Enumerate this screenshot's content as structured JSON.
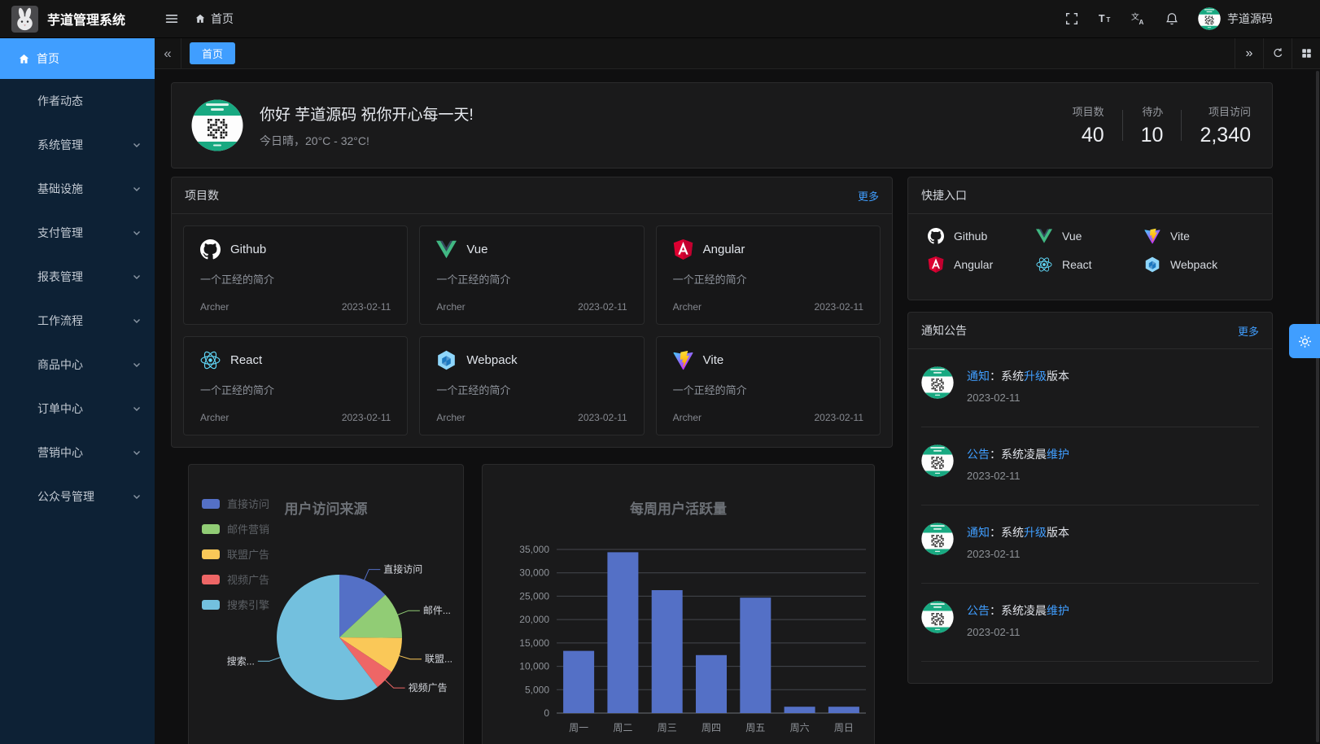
{
  "app": {
    "title": "芋道管理系统"
  },
  "topbar": {
    "breadcrumb_home": "首页",
    "user_name": "芋道源码",
    "actions": [
      "fullscreen-icon",
      "font-size-icon",
      "language-icon",
      "notification-icon"
    ]
  },
  "sidebar": {
    "items": [
      {
        "key": "home",
        "label": "首页",
        "icon": "home",
        "active": true,
        "chevron": false
      },
      {
        "key": "author-news",
        "label": "作者动态",
        "chevron": false
      },
      {
        "key": "system",
        "label": "系统管理",
        "chevron": true
      },
      {
        "key": "infra",
        "label": "基础设施",
        "chevron": true
      },
      {
        "key": "pay",
        "label": "支付管理",
        "chevron": true
      },
      {
        "key": "report",
        "label": "报表管理",
        "chevron": true
      },
      {
        "key": "workflow",
        "label": "工作流程",
        "chevron": true
      },
      {
        "key": "product",
        "label": "商品中心",
        "chevron": true
      },
      {
        "key": "order",
        "label": "订单中心",
        "chevron": true
      },
      {
        "key": "promotion",
        "label": "营销中心",
        "chevron": true
      },
      {
        "key": "mp",
        "label": "公众号管理",
        "chevron": true
      }
    ]
  },
  "tabbar": {
    "active_tab": "首页"
  },
  "greeting": {
    "title": "你好 芋道源码 祝你开心每一天!",
    "subtitle": "今日晴，20°C - 32°C!",
    "stats": [
      {
        "key": "project-count",
        "label": "项目数",
        "value": "40"
      },
      {
        "key": "todo",
        "label": "待办",
        "value": "10"
      },
      {
        "key": "project-visits",
        "label": "项目访问",
        "value": "2,340"
      }
    ]
  },
  "projects": {
    "title": "项目数",
    "more": "更多",
    "items": [
      {
        "name": "Github",
        "icon": "github",
        "desc": "一个正经的简介",
        "author": "Archer",
        "date": "2023-02-11"
      },
      {
        "name": "Vue",
        "icon": "vue",
        "desc": "一个正经的简介",
        "author": "Archer",
        "date": "2023-02-11"
      },
      {
        "name": "Angular",
        "icon": "angular",
        "desc": "一个正经的简介",
        "author": "Archer",
        "date": "2023-02-11"
      },
      {
        "name": "React",
        "icon": "react",
        "desc": "一个正经的简介",
        "author": "Archer",
        "date": "2023-02-11"
      },
      {
        "name": "Webpack",
        "icon": "webpack",
        "desc": "一个正经的简介",
        "author": "Archer",
        "date": "2023-02-11"
      },
      {
        "name": "Vite",
        "icon": "vite",
        "desc": "一个正经的简介",
        "author": "Archer",
        "date": "2023-02-11"
      }
    ]
  },
  "shortcuts": {
    "title": "快捷入口",
    "items": [
      {
        "name": "Github",
        "icon": "github"
      },
      {
        "name": "Vue",
        "icon": "vue"
      },
      {
        "name": "Vite",
        "icon": "vite"
      },
      {
        "name": "Angular",
        "icon": "angular"
      },
      {
        "name": "React",
        "icon": "react"
      },
      {
        "name": "Webpack",
        "icon": "webpack"
      }
    ]
  },
  "notices": {
    "title": "通知公告",
    "more": "更多",
    "items": [
      {
        "segments": [
          {
            "text": "通知",
            "link": true
          },
          {
            "text": "：系统",
            "link": false
          },
          {
            "text": "升级",
            "link": true
          },
          {
            "text": "版本",
            "link": false
          }
        ],
        "date": "2023-02-11"
      },
      {
        "segments": [
          {
            "text": "公告",
            "link": true
          },
          {
            "text": "：系统凌晨",
            "link": false
          },
          {
            "text": "维护",
            "link": true
          }
        ],
        "date": "2023-02-11"
      },
      {
        "segments": [
          {
            "text": "通知",
            "link": true
          },
          {
            "text": "：系统",
            "link": false
          },
          {
            "text": "升级",
            "link": true
          },
          {
            "text": "版本",
            "link": false
          }
        ],
        "date": "2023-02-11"
      },
      {
        "segments": [
          {
            "text": "公告",
            "link": true
          },
          {
            "text": "：系统凌晨",
            "link": false
          },
          {
            "text": "维护",
            "link": true
          }
        ],
        "date": "2023-02-11"
      }
    ]
  },
  "chart_data": [
    {
      "type": "pie",
      "title": "用户访问来源",
      "legend_position": "left",
      "legend": [
        "直接访问",
        "邮件营销",
        "联盟广告",
        "视频广告",
        "搜索引擎"
      ],
      "series": [
        {
          "name": "直接访问",
          "value": 335,
          "display_label": "直接访问"
        },
        {
          "name": "邮件营销",
          "value": 310,
          "display_label": "邮件..."
        },
        {
          "name": "联盟广告",
          "value": 234,
          "display_label": "联盟..."
        },
        {
          "name": "视频广告",
          "value": 135,
          "display_label": "视频广告"
        },
        {
          "name": "搜索引擎",
          "value": 1548,
          "display_label": "搜索..."
        }
      ],
      "colors": [
        "#5470c6",
        "#91cc75",
        "#fac858",
        "#ee6666",
        "#73c0de"
      ]
    },
    {
      "type": "bar",
      "title": "每周用户活跃量",
      "categories": [
        "周一",
        "周二",
        "周三",
        "周四",
        "周五",
        "周六",
        "周日"
      ],
      "values": [
        13300,
        34400,
        26300,
        12400,
        24700,
        1350,
        1350
      ],
      "ylim": [
        0,
        35000
      ],
      "ytick_step": 5000,
      "bar_color": "#5470c6",
      "grid": true
    }
  ],
  "colors": {
    "primary": "#409eff",
    "sidebar_bg": "#0d2135",
    "avatar_green": "#18a981",
    "vue_green": "#41B883",
    "angular_red": "#DD0031",
    "react_cyan": "#61DAFB",
    "webpack_blue": "#8ED6FB"
  }
}
